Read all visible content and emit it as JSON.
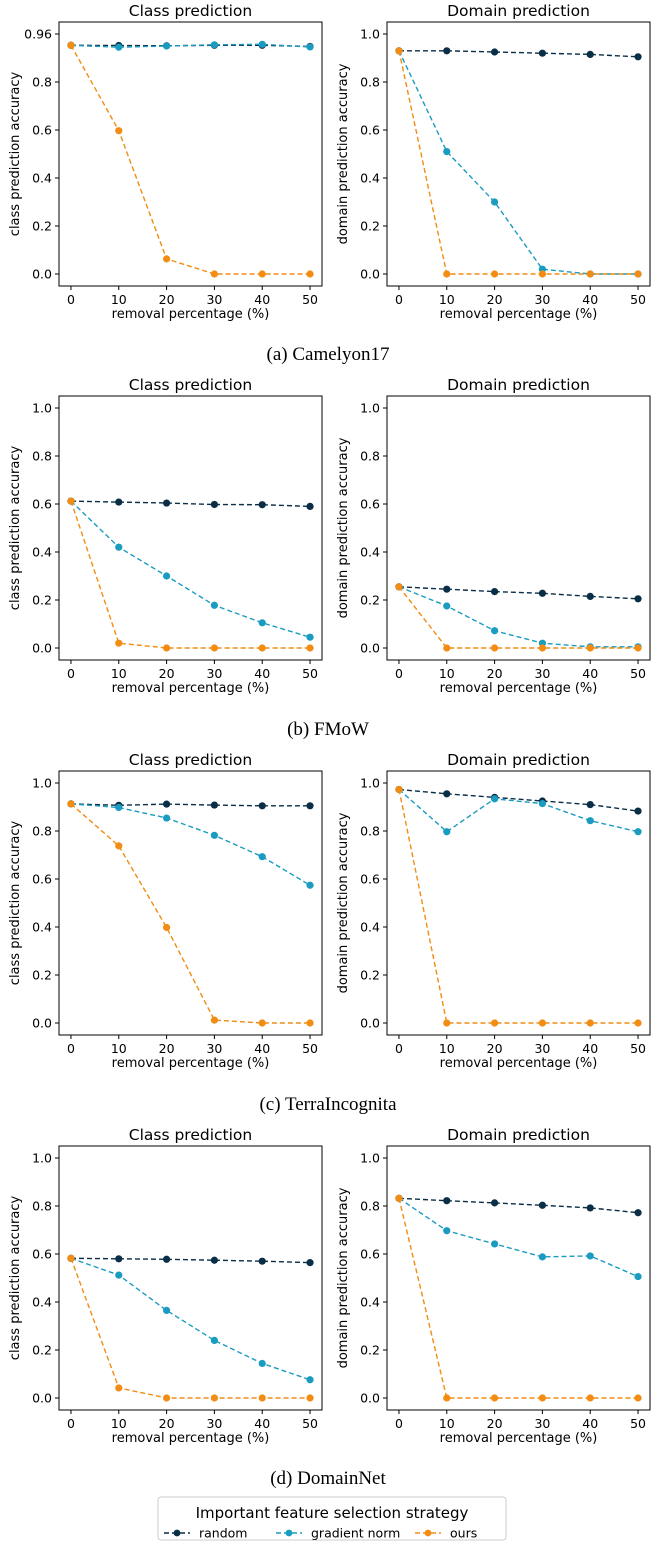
{
  "colors": {
    "random": "#0b2e47",
    "gradient_norm": "#1a9bc0",
    "ours": "#f28c13"
  },
  "legend": {
    "title": "Important feature selection strategy",
    "entries": [
      "random",
      "gradient norm",
      "ours"
    ]
  },
  "chart_data": [
    {
      "type": "line",
      "group": "Camelyon17",
      "caption": "(a) Camelyon17",
      "title": "Class prediction",
      "xlabel": "removal percentage (%)",
      "ylabel": "class prediction accuracy",
      "x": [
        0,
        10,
        20,
        30,
        40,
        50
      ],
      "ylim": [
        0,
        1.0
      ],
      "xticks": [
        "0",
        "10",
        "20",
        "30",
        "40",
        "50"
      ],
      "yticks": [
        "0.0",
        "0.2",
        "0.4",
        "0.6",
        "0.8",
        "0.96"
      ],
      "series": [
        {
          "name": "random",
          "values": [
            0.953,
            0.952,
            0.951,
            0.953,
            0.953,
            0.948
          ]
        },
        {
          "name": "gradient norm",
          "values": [
            0.953,
            0.945,
            0.95,
            0.955,
            0.957,
            0.946
          ]
        },
        {
          "name": "ours",
          "values": [
            0.953,
            0.597,
            0.063,
            0.0,
            0.0,
            0.0
          ]
        }
      ]
    },
    {
      "type": "line",
      "group": "Camelyon17",
      "title": "Domain prediction",
      "xlabel": "removal percentage (%)",
      "ylabel": "domain prediction accuracy",
      "x": [
        0,
        10,
        20,
        30,
        40,
        50
      ],
      "ylim": [
        0,
        1.0
      ],
      "xticks": [
        "0",
        "10",
        "20",
        "30",
        "40",
        "50"
      ],
      "yticks": [
        "0.0",
        "0.2",
        "0.4",
        "0.6",
        "0.8",
        "1.0"
      ],
      "series": [
        {
          "name": "random",
          "values": [
            0.93,
            0.93,
            0.925,
            0.92,
            0.915,
            0.905
          ]
        },
        {
          "name": "gradient norm",
          "values": [
            0.93,
            0.51,
            0.3,
            0.02,
            0.0,
            0.0
          ]
        },
        {
          "name": "ours",
          "values": [
            0.93,
            0.0,
            0.0,
            0.0,
            0.0,
            0.0
          ]
        }
      ]
    },
    {
      "type": "line",
      "group": "FMoW",
      "caption": "(b) FMoW",
      "title": "Class prediction",
      "xlabel": "removal percentage (%)",
      "ylabel": "class prediction accuracy",
      "x": [
        0,
        10,
        20,
        30,
        40,
        50
      ],
      "ylim": [
        0,
        1.0
      ],
      "xticks": [
        "0",
        "10",
        "20",
        "30",
        "40",
        "50"
      ],
      "yticks": [
        "0.0",
        "0.2",
        "0.4",
        "0.6",
        "0.8",
        "1.0"
      ],
      "series": [
        {
          "name": "random",
          "values": [
            0.612,
            0.608,
            0.604,
            0.598,
            0.597,
            0.59
          ]
        },
        {
          "name": "gradient norm",
          "values": [
            0.612,
            0.42,
            0.3,
            0.178,
            0.105,
            0.045
          ]
        },
        {
          "name": "ours",
          "values": [
            0.612,
            0.02,
            0.0,
            0.0,
            0.0,
            0.0
          ]
        }
      ]
    },
    {
      "type": "line",
      "group": "FMoW",
      "title": "Domain prediction",
      "xlabel": "removal percentage (%)",
      "ylabel": "domain prediction accuracy",
      "x": [
        0,
        10,
        20,
        30,
        40,
        50
      ],
      "ylim": [
        0,
        1.0
      ],
      "xticks": [
        "0",
        "10",
        "20",
        "30",
        "40",
        "50"
      ],
      "yticks": [
        "0.0",
        "0.2",
        "0.4",
        "0.6",
        "0.8",
        "1.0"
      ],
      "series": [
        {
          "name": "random",
          "values": [
            0.255,
            0.245,
            0.235,
            0.228,
            0.215,
            0.205
          ]
        },
        {
          "name": "gradient norm",
          "values": [
            0.255,
            0.175,
            0.072,
            0.02,
            0.005,
            0.005
          ]
        },
        {
          "name": "ours",
          "values": [
            0.255,
            0.0,
            0.0,
            0.0,
            0.0,
            0.0
          ]
        }
      ]
    },
    {
      "type": "line",
      "group": "TerraIncognita",
      "caption": "(c) TerraIncognita",
      "title": "Class prediction",
      "xlabel": "removal percentage (%)",
      "ylabel": "class prediction accuracy",
      "x": [
        0,
        10,
        20,
        30,
        40,
        50
      ],
      "ylim": [
        0,
        1.0
      ],
      "xticks": [
        "0",
        "10",
        "20",
        "30",
        "40",
        "50"
      ],
      "yticks": [
        "0.0",
        "0.2",
        "0.4",
        "0.6",
        "0.8",
        "1.0"
      ],
      "series": [
        {
          "name": "random",
          "values": [
            0.913,
            0.907,
            0.912,
            0.908,
            0.905,
            0.905
          ]
        },
        {
          "name": "gradient norm",
          "values": [
            0.913,
            0.898,
            0.854,
            0.782,
            0.693,
            0.574
          ]
        },
        {
          "name": "ours",
          "values": [
            0.913,
            0.738,
            0.398,
            0.012,
            0.0,
            0.0
          ]
        }
      ]
    },
    {
      "type": "line",
      "group": "TerraIncognita",
      "title": "Domain prediction",
      "xlabel": "removal percentage (%)",
      "ylabel": "domain prediction accuracy",
      "x": [
        0,
        10,
        20,
        30,
        40,
        50
      ],
      "ylim": [
        0,
        1.0
      ],
      "xticks": [
        "0",
        "10",
        "20",
        "30",
        "40",
        "50"
      ],
      "yticks": [
        "0.0",
        "0.2",
        "0.4",
        "0.6",
        "0.8",
        "1.0"
      ],
      "series": [
        {
          "name": "random",
          "values": [
            0.973,
            0.955,
            0.94,
            0.925,
            0.91,
            0.883
          ]
        },
        {
          "name": "gradient norm",
          "values": [
            0.973,
            0.797,
            0.934,
            0.914,
            0.843,
            0.797
          ]
        },
        {
          "name": "ours",
          "values": [
            0.973,
            0.0,
            0.0,
            0.0,
            0.0,
            0.0
          ]
        }
      ]
    },
    {
      "type": "line",
      "group": "DomainNet",
      "caption": "(d) DomainNet",
      "title": "Class prediction",
      "xlabel": "removal percentage (%)",
      "ylabel": "class prediction accuracy",
      "x": [
        0,
        10,
        20,
        30,
        40,
        50
      ],
      "ylim": [
        0,
        1.0
      ],
      "xticks": [
        "0",
        "10",
        "20",
        "30",
        "40",
        "50"
      ],
      "yticks": [
        "0.0",
        "0.2",
        "0.4",
        "0.6",
        "0.8",
        "1.0"
      ],
      "series": [
        {
          "name": "random",
          "values": [
            0.582,
            0.58,
            0.578,
            0.574,
            0.57,
            0.564
          ]
        },
        {
          "name": "gradient norm",
          "values": [
            0.582,
            0.512,
            0.365,
            0.24,
            0.144,
            0.076
          ]
        },
        {
          "name": "ours",
          "values": [
            0.582,
            0.042,
            0.0,
            0.0,
            0.0,
            0.0
          ]
        }
      ]
    },
    {
      "type": "line",
      "group": "DomainNet",
      "title": "Domain prediction",
      "xlabel": "removal percentage (%)",
      "ylabel": "domain prediction accuracy",
      "x": [
        0,
        10,
        20,
        30,
        40,
        50
      ],
      "ylim": [
        0,
        1.0
      ],
      "xticks": [
        "0",
        "10",
        "20",
        "30",
        "40",
        "50"
      ],
      "yticks": [
        "0.0",
        "0.2",
        "0.4",
        "0.6",
        "0.8",
        "1.0"
      ],
      "series": [
        {
          "name": "random",
          "values": [
            0.832,
            0.822,
            0.813,
            0.803,
            0.792,
            0.772
          ]
        },
        {
          "name": "gradient norm",
          "values": [
            0.832,
            0.697,
            0.642,
            0.588,
            0.592,
            0.506
          ]
        },
        {
          "name": "ours",
          "values": [
            0.832,
            0.0,
            0.0,
            0.0,
            0.0,
            0.0
          ]
        }
      ]
    }
  ]
}
